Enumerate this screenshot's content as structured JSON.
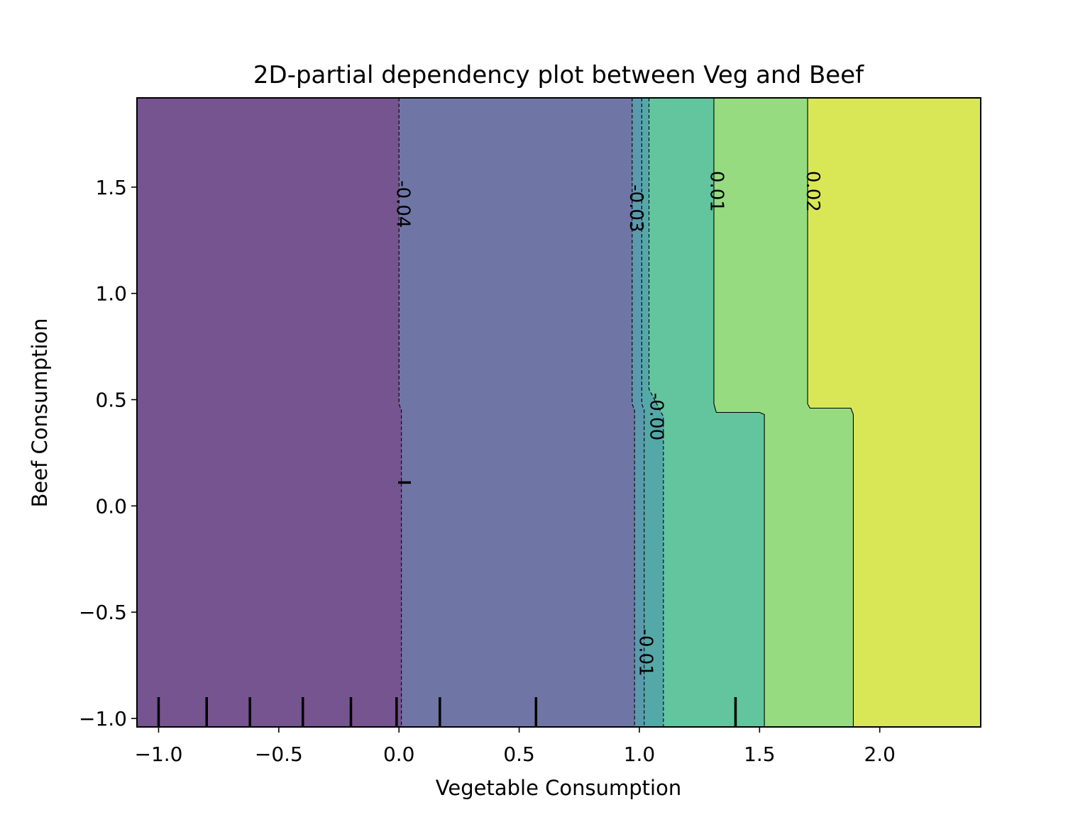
{
  "chart_data": {
    "type": "contour",
    "title": "2D-partial dependency plot between Veg and Beef",
    "xlabel": "Vegetable Consumption",
    "ylabel": "Beef Consumption",
    "xlim": [
      -1.09,
      2.42
    ],
    "ylim": [
      -1.04,
      1.92
    ],
    "xticks": [
      -1.0,
      -0.5,
      0.0,
      0.5,
      1.0,
      1.5,
      2.0
    ],
    "xtick_labels": [
      "−1.0",
      "−0.5",
      "0.0",
      "0.5",
      "1.0",
      "1.5",
      "2.0"
    ],
    "yticks": [
      -1.0,
      -0.5,
      0.0,
      0.5,
      1.0,
      1.5
    ],
    "ytick_labels": [
      "−1.0",
      "−0.5",
      "0.0",
      "0.5",
      "1.0",
      "1.5"
    ],
    "regions": [
      {
        "color": "#76548f",
        "boundary": [
          [
            0.0,
            1.92
          ],
          [
            0.0,
            0.48
          ],
          [
            0.01,
            0.45
          ],
          [
            0.01,
            -1.04
          ]
        ]
      },
      {
        "color": "#6f76a6",
        "boundary": [
          [
            0.97,
            1.92
          ],
          [
            0.97,
            0.48
          ],
          [
            0.98,
            0.45
          ],
          [
            0.98,
            -1.04
          ]
        ]
      },
      {
        "color": "#5b9aac",
        "boundary": [
          [
            1.01,
            1.92
          ],
          [
            1.01,
            0.48
          ],
          [
            1.02,
            0.45
          ],
          [
            1.02,
            -1.04
          ]
        ]
      },
      {
        "color": "#54a8a8",
        "boundary": [
          [
            1.04,
            1.92
          ],
          [
            1.04,
            0.55
          ],
          [
            1.1,
            0.42
          ],
          [
            1.1,
            -1.04
          ]
        ]
      },
      {
        "color": "#62c59d",
        "boundary": [
          [
            1.31,
            1.92
          ],
          [
            1.31,
            0.48
          ],
          [
            1.32,
            0.44
          ],
          [
            1.5,
            0.44
          ],
          [
            1.52,
            0.43
          ],
          [
            1.52,
            -1.04
          ]
        ]
      },
      {
        "color": "#96db80",
        "boundary": [
          [
            1.7,
            1.92
          ],
          [
            1.7,
            0.48
          ],
          [
            1.71,
            0.46
          ],
          [
            1.88,
            0.46
          ],
          [
            1.89,
            0.43
          ],
          [
            1.89,
            -1.04
          ]
        ]
      },
      {
        "color": "#d9e756",
        "boundary": null
      }
    ],
    "contour_lines": [
      {
        "level": "-0.04",
        "dashed": true,
        "points": [
          [
            0.0,
            1.92
          ],
          [
            0.0,
            0.48
          ],
          [
            0.01,
            0.45
          ],
          [
            0.01,
            -1.04
          ]
        ]
      },
      {
        "level": "-0.03",
        "dashed": true,
        "points": [
          [
            0.97,
            1.92
          ],
          [
            0.97,
            0.48
          ],
          [
            0.98,
            0.45
          ],
          [
            0.98,
            -1.04
          ]
        ]
      },
      {
        "level": "-0.01",
        "dashed": true,
        "points": [
          [
            1.01,
            1.92
          ],
          [
            1.01,
            0.48
          ],
          [
            1.02,
            0.45
          ],
          [
            1.02,
            -1.04
          ]
        ]
      },
      {
        "level": "-0.00",
        "dashed": true,
        "points": [
          [
            1.04,
            1.92
          ],
          [
            1.04,
            0.55
          ],
          [
            1.1,
            0.42
          ],
          [
            1.1,
            -1.04
          ]
        ]
      },
      {
        "level": "0.01",
        "dashed": false,
        "points": [
          [
            1.31,
            1.92
          ],
          [
            1.31,
            0.48
          ],
          [
            1.32,
            0.44
          ],
          [
            1.5,
            0.44
          ],
          [
            1.52,
            0.43
          ],
          [
            1.52,
            -1.04
          ]
        ]
      },
      {
        "level": "0.02",
        "dashed": false,
        "points": [
          [
            1.7,
            1.92
          ],
          [
            1.7,
            0.48
          ],
          [
            1.71,
            0.46
          ],
          [
            1.88,
            0.46
          ],
          [
            1.89,
            0.43
          ],
          [
            1.89,
            -1.04
          ]
        ]
      }
    ],
    "contour_labels": [
      {
        "text": "-0.04",
        "x": 0.015,
        "y": 1.42
      },
      {
        "text": "-0.03",
        "x": 0.985,
        "y": 1.4
      },
      {
        "text": "0.01",
        "x": 1.32,
        "y": 1.48
      },
      {
        "text": "0.02",
        "x": 1.72,
        "y": 1.48
      },
      {
        "text": "-0.00",
        "x": 1.07,
        "y": 0.42
      },
      {
        "text": "-0.01",
        "x": 1.025,
        "y": -0.69
      }
    ],
    "x_deciles": [
      -1.0,
      -0.8,
      -0.62,
      -0.4,
      -0.2,
      -0.01,
      0.17,
      0.57,
      1.4
    ],
    "y_deciles": [
      0.11
    ]
  }
}
